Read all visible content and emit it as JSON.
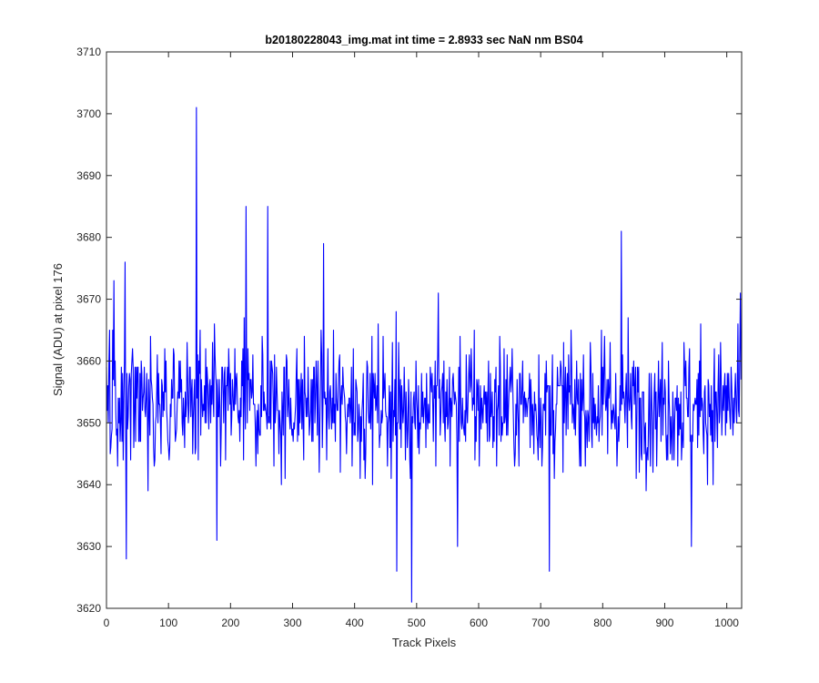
{
  "chart_data": {
    "type": "line",
    "title": "b20180228043_img.mat int time = 2.8933 sec  NaN nm BS04",
    "xlabel": "Track Pixels",
    "ylabel": "Signal (ADU) at pixel 176",
    "xlim": [
      0,
      1024
    ],
    "ylim": [
      3620,
      3710
    ],
    "xticks": [
      0,
      100,
      200,
      300,
      400,
      500,
      600,
      700,
      800,
      900,
      1000
    ],
    "yticks": [
      3620,
      3630,
      3640,
      3650,
      3660,
      3670,
      3680,
      3690,
      3700,
      3710
    ],
    "grid": false,
    "series_color": "#0000ff",
    "series": [
      {
        "peaks": [
          {
            "x": 4,
            "y": 3660
          },
          {
            "x": 12,
            "y": 3673
          },
          {
            "x": 30,
            "y": 3676
          },
          {
            "x": 145,
            "y": 3701
          },
          {
            "x": 225,
            "y": 3685
          },
          {
            "x": 260,
            "y": 3685
          },
          {
            "x": 350,
            "y": 3679
          },
          {
            "x": 535,
            "y": 3671
          },
          {
            "x": 830,
            "y": 3681
          },
          {
            "x": 1022,
            "y": 3671
          }
        ],
        "troughs": [
          {
            "x": 32,
            "y": 3628
          },
          {
            "x": 178,
            "y": 3631
          },
          {
            "x": 468,
            "y": 3626
          },
          {
            "x": 492,
            "y": 3621
          },
          {
            "x": 566,
            "y": 3630
          },
          {
            "x": 714,
            "y": 3626
          },
          {
            "x": 943,
            "y": 3630
          }
        ],
        "baseline": 3653,
        "noise_amplitude": 6,
        "n_points": 1024
      }
    ]
  }
}
